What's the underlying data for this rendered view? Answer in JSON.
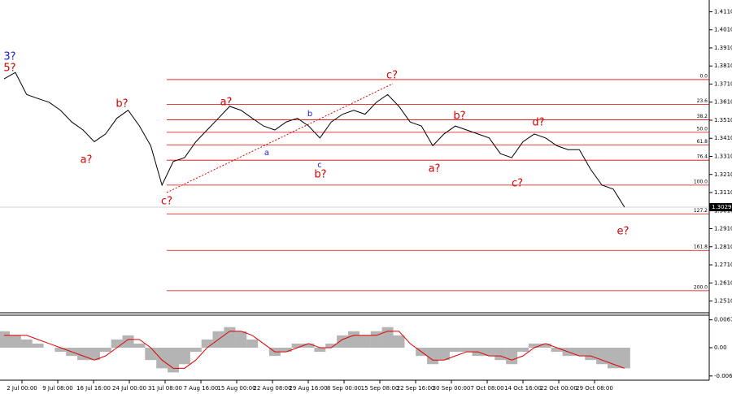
{
  "chart_data": [
    {
      "type": "line",
      "name": "price",
      "values": [
        1.3739,
        1.3774,
        1.3652,
        1.363,
        1.3609,
        1.3565,
        1.35,
        1.3456,
        1.3391,
        1.3434,
        1.3521,
        1.3565,
        1.3478,
        1.3369,
        1.3151,
        1.3282,
        1.3303,
        1.3391,
        1.3456,
        1.3521,
        1.3587,
        1.3565,
        1.3521,
        1.3478,
        1.3456,
        1.35,
        1.3521,
        1.3478,
        1.3412,
        1.35,
        1.3543,
        1.3565,
        1.3543,
        1.3609,
        1.3652,
        1.3587,
        1.35,
        1.3478,
        1.3369,
        1.3434,
        1.3478,
        1.3456,
        1.3434,
        1.3412,
        1.3325,
        1.3303,
        1.3391,
        1.3434,
        1.3412,
        1.3369,
        1.3347,
        1.3347,
        1.3238,
        1.3151,
        1.3129,
        1.3029
      ],
      "color": "#000000",
      "ylim": [
        1.2445,
        1.4175
      ],
      "yticks": [
        {
          "value": 1.411,
          "label": "1.4110"
        },
        {
          "value": 1.401,
          "label": "1.4010"
        },
        {
          "value": 1.391,
          "label": "1.3910"
        },
        {
          "value": 1.381,
          "label": "1.3810"
        },
        {
          "value": 1.371,
          "label": "1.3710"
        },
        {
          "value": 1.361,
          "label": "1.3610"
        },
        {
          "value": 1.351,
          "label": "1.3510"
        },
        {
          "value": 1.341,
          "label": "1.3410"
        },
        {
          "value": 1.331,
          "label": "1.3310"
        },
        {
          "value": 1.321,
          "label": "1.3210"
        },
        {
          "value": 1.311,
          "label": "1.3110"
        },
        {
          "value": 1.301,
          "label": "1.3010"
        },
        {
          "value": 1.291,
          "label": "1.2910"
        },
        {
          "value": 1.281,
          "label": "1.2810"
        },
        {
          "value": 1.271,
          "label": "1.2710"
        },
        {
          "value": 1.261,
          "label": "1.2610"
        },
        {
          "value": 1.251,
          "label": "1.2510"
        }
      ],
      "current_price": 1.3029,
      "fib_color": "#e00000",
      "fib_levels": [
        {
          "label": "0.0",
          "value": 1.3735
        },
        {
          "label": "23.6",
          "value": 1.3597
        },
        {
          "label": "38.2",
          "value": 1.3512
        },
        {
          "label": "50.0",
          "value": 1.3443
        },
        {
          "label": "61.8",
          "value": 1.3374
        },
        {
          "label": "76.4",
          "value": 1.3289
        },
        {
          "label": "100.0",
          "value": 1.3151
        },
        {
          "label": "127.2",
          "value": 1.2992
        },
        {
          "label": "161.8",
          "value": 1.279
        },
        {
          "label": "200.0",
          "value": 1.2567
        }
      ],
      "annotations": [
        {
          "text": "3?",
          "color": "#1a1ad6"
        },
        {
          "text": "5?",
          "color": "#d60000"
        },
        {
          "text": "a?",
          "color": "#d60000"
        },
        {
          "text": "b?",
          "color": "#d60000"
        },
        {
          "text": "c?",
          "color": "#d60000"
        },
        {
          "text": "a?",
          "color": "#d60000"
        },
        {
          "text": "a",
          "color": "#1a1ad6"
        },
        {
          "text": "b",
          "color": "#1a1ad6"
        },
        {
          "text": "c",
          "color": "#1a1ad6"
        },
        {
          "text": "b?",
          "color": "#d60000"
        },
        {
          "text": "c?",
          "color": "#d60000"
        },
        {
          "text": "a?",
          "color": "#d60000"
        },
        {
          "text": "b?",
          "color": "#d60000"
        },
        {
          "text": "c?",
          "color": "#d60000"
        },
        {
          "text": "d?",
          "color": "#d60000"
        },
        {
          "text": "e?",
          "color": "#d60000"
        }
      ],
      "x_labels": [
        "2 Jul 00:00",
        "9 Jul 08:00",
        "16 Jul 16:00",
        "24 Jul 00:00",
        "31 Jul 08:00",
        "7 Aug 16:00",
        "15 Aug 00:00",
        "22 Aug 08:00",
        "29 Aug 16:00",
        "8 Sep 00:00",
        "15 Sep 08:00",
        "22 Sep 16:00",
        "30 Sep 00:00",
        "7 Oct 08:00",
        "14 Oct 16:00",
        "22 Oct 00:00",
        "29 Oct 08:00"
      ]
    },
    {
      "type": "histogram-oscillator",
      "name": "oscillator",
      "values": [
        0.004,
        0.003,
        0.002,
        0.001,
        0,
        -0.001,
        -0.002,
        -0.003,
        -0.003,
        -0.001,
        0.002,
        0.003,
        0.001,
        -0.003,
        -0.005,
        -0.006,
        -0.004,
        -0.001,
        0.002,
        0.004,
        0.005,
        0.004,
        0.002,
        0,
        -0.002,
        -0.001,
        0.001,
        0.001,
        -0.001,
        0.001,
        0.003,
        0.004,
        0.003,
        0.004,
        0.005,
        0.003,
        0,
        -0.002,
        -0.004,
        -0.003,
        -0.001,
        -0.001,
        -0.002,
        -0.002,
        -0.003,
        -0.004,
        -0.001,
        0.001,
        0.001,
        -0.001,
        -0.002,
        -0.002,
        -0.003,
        -0.004,
        -0.005,
        -0.005
      ],
      "signal": [
        0.003,
        0.003,
        0.003,
        0.002,
        0.001,
        0,
        -0.001,
        -0.002,
        -0.003,
        -0.002,
        0,
        0.002,
        0.002,
        0,
        -0.003,
        -0.005,
        -0.005,
        -0.003,
        0,
        0.002,
        0.004,
        0.004,
        0.003,
        0.001,
        -0.001,
        -0.001,
        0,
        0.001,
        0,
        0,
        0.002,
        0.003,
        0.003,
        0.003,
        0.004,
        0.004,
        0.001,
        -0.001,
        -0.003,
        -0.003,
        -0.002,
        -0.001,
        -0.001,
        -0.002,
        -0.002,
        -0.003,
        -0.002,
        0,
        0.001,
        0,
        -0.001,
        -0.002,
        -0.002,
        -0.003,
        -0.004,
        -0.005
      ],
      "color": "#b4b4b4",
      "signal_color": "#e00000",
      "ylim": [
        -0.0075,
        0.0075
      ],
      "yticks": [
        0.00678,
        {
          "value": 0,
          "label": "0.00"
        },
        -0.00687
      ]
    }
  ]
}
